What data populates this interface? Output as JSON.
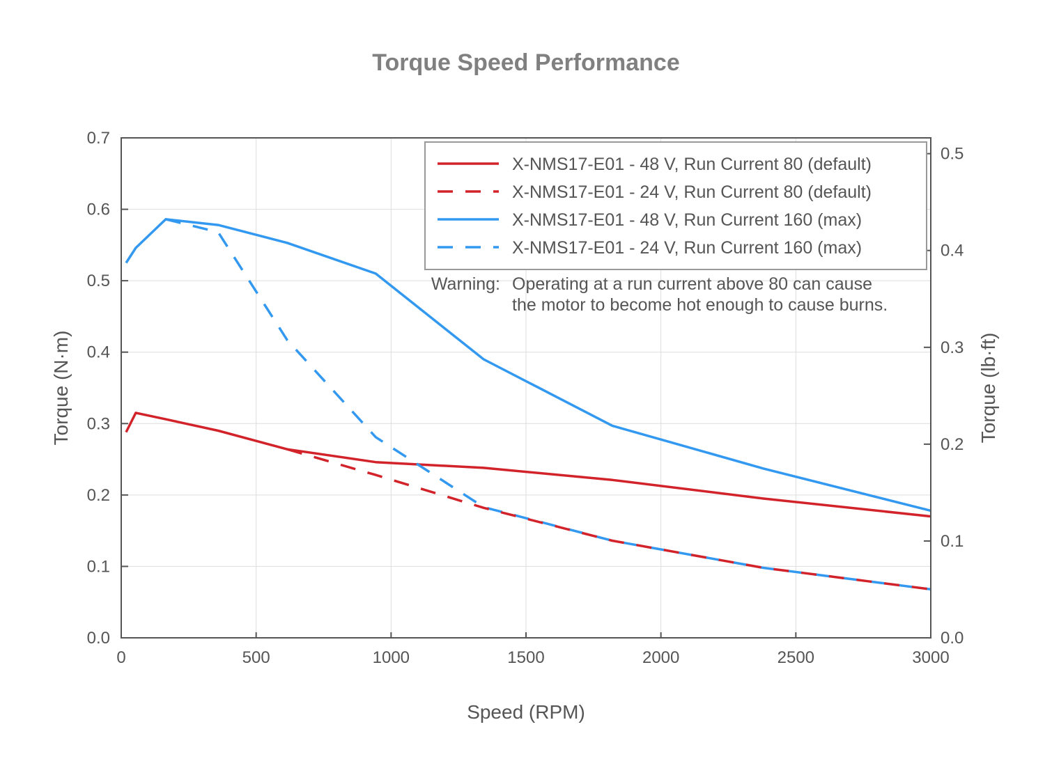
{
  "chart_data": {
    "type": "line",
    "title": "Torque Speed Performance",
    "xlabel": "Speed (RPM)",
    "ylabel": "Torque (N·m)",
    "y2label": "Torque (lb·ft)",
    "xlim": [
      0,
      3000
    ],
    "ylim": [
      0,
      0.7
    ],
    "y2lim": [
      0,
      0.5163
    ],
    "grid": true,
    "legend_position": "top-right",
    "x_ticks": [
      0,
      500,
      1000,
      1500,
      2000,
      2500,
      3000
    ],
    "x_tick_labels": [
      "0",
      "500",
      "1000",
      "1500",
      "2000",
      "2500",
      "3000"
    ],
    "y_ticks": [
      0,
      0.1,
      0.2,
      0.3,
      0.4,
      0.5,
      0.6,
      0.7
    ],
    "y_tick_labels": [
      "0.0",
      "0.1",
      "0.2",
      "0.3",
      "0.4",
      "0.5",
      "0.6",
      "0.7"
    ],
    "y2_ticks": [
      0,
      0.1,
      0.2,
      0.3,
      0.4,
      0.5
    ],
    "y2_tick_labels": [
      "0.0",
      "0.1",
      "0.2",
      "0.3",
      "0.4",
      "0.5"
    ],
    "series": [
      {
        "name": "X-NMS17-E01 - 48 V, Run Current 80 (default)",
        "color": "#d2232a",
        "dash": false,
        "x": [
          18,
          54,
          165,
          359,
          615,
          943,
          1343,
          1820,
          2380,
          3000
        ],
        "y": [
          0.288,
          0.315,
          0.306,
          0.29,
          0.264,
          0.246,
          0.238,
          0.221,
          0.195,
          0.17
        ]
      },
      {
        "name": "X-NMS17-E01 - 24 V, Run Current 80 (default)",
        "color": "#d2232a",
        "dash": true,
        "x": [
          615,
          943,
          1343,
          1820,
          2380,
          3000
        ],
        "y": [
          0.264,
          0.228,
          0.182,
          0.136,
          0.098,
          0.068
        ]
      },
      {
        "name": "X-NMS17-E01 - 48 V, Run Current 160 (max)",
        "color": "#3399f0",
        "dash": false,
        "x": [
          18,
          54,
          165,
          359,
          615,
          943,
          1343,
          1820,
          2380,
          3000
        ],
        "y": [
          0.525,
          0.546,
          0.586,
          0.578,
          0.553,
          0.51,
          0.39,
          0.297,
          0.237,
          0.178
        ]
      },
      {
        "name": "X-NMS17-E01 - 24 V, Run Current 160 (max)",
        "color": "#3399f0",
        "dash": true,
        "x": [
          165,
          359,
          615,
          943,
          1343,
          1820,
          2380,
          3000
        ],
        "y": [
          0.586,
          0.568,
          0.417,
          0.281,
          0.183,
          0.136,
          0.098,
          0.068
        ]
      }
    ],
    "annotation": {
      "label": "Warning:",
      "lines": [
        "Operating at a run current above 80 can cause",
        "the motor to become hot enough to cause burns."
      ]
    }
  }
}
